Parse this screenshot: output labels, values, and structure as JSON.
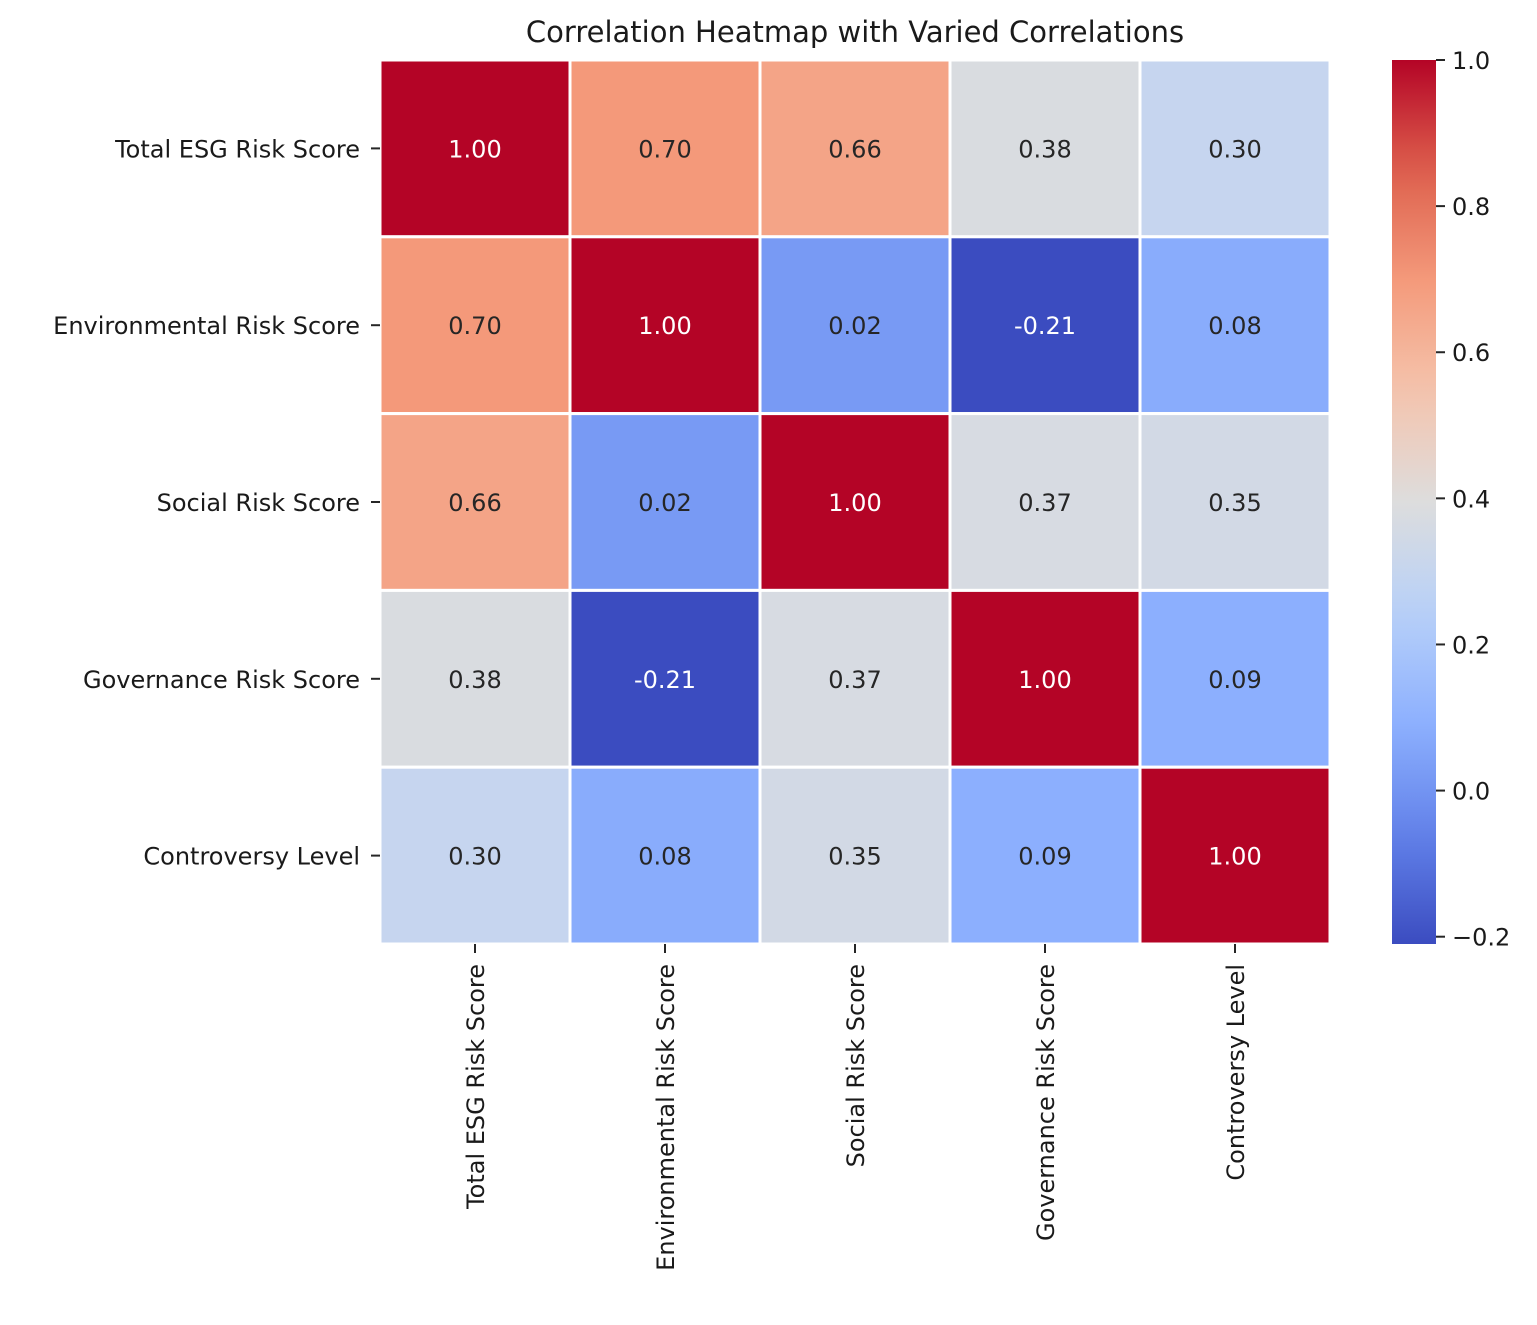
{
  "chart_data": {
    "type": "heatmap",
    "title": "Correlation Heatmap with Varied Correlations",
    "xlabel": "",
    "ylabel": "",
    "x_labels": [
      "Total ESG Risk Score",
      "Environmental Risk Score",
      "Social Risk Score",
      "Governance Risk Score",
      "Controversy Level"
    ],
    "y_labels": [
      "Total ESG Risk Score",
      "Environmental Risk Score",
      "Social Risk Score",
      "Governance Risk Score",
      "Controversy Level"
    ],
    "values": [
      [
        1.0,
        0.7,
        0.66,
        0.38,
        0.3
      ],
      [
        0.7,
        1.0,
        0.02,
        -0.21,
        0.08
      ],
      [
        0.66,
        0.02,
        1.0,
        0.37,
        0.35
      ],
      [
        0.38,
        -0.21,
        0.37,
        1.0,
        0.09
      ],
      [
        0.3,
        0.08,
        0.35,
        0.09,
        1.0
      ]
    ],
    "value_format": "2 decimals",
    "colormap": "coolwarm",
    "colorbar": {
      "range": [
        -0.21,
        1.0
      ],
      "ticks": [
        1.0,
        0.8,
        0.6,
        0.4,
        0.2,
        0.0,
        -0.2
      ],
      "tick_labels": [
        "1.0",
        "0.8",
        "0.6",
        "0.4",
        "0.2",
        "0.0",
        "−0.2"
      ],
      "position": "right"
    },
    "cell_border_color": "#ffffff",
    "grid": false
  }
}
